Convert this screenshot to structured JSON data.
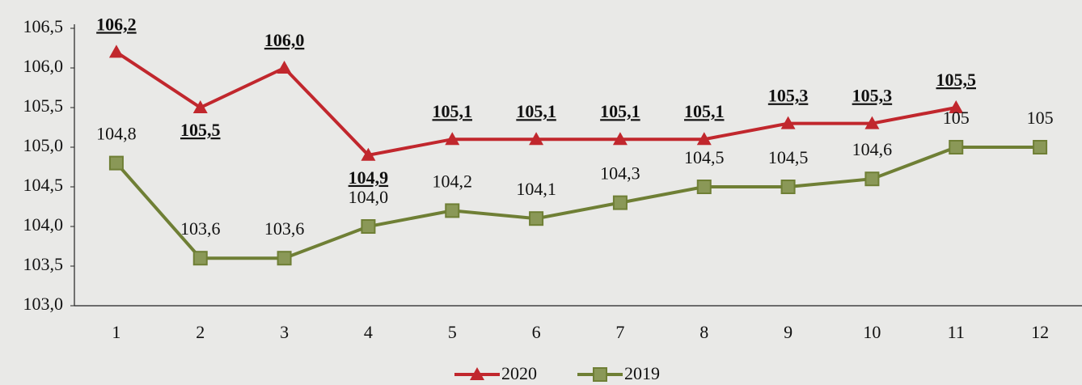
{
  "chart_data": {
    "type": "line",
    "categories": [
      "1",
      "2",
      "3",
      "4",
      "5",
      "6",
      "7",
      "8",
      "9",
      "10",
      "11",
      "12"
    ],
    "series": [
      {
        "name": "2020",
        "color": "#c1272d",
        "marker": "triangle",
        "values": [
          106.2,
          105.5,
          106.0,
          104.9,
          105.1,
          105.1,
          105.1,
          105.1,
          105.3,
          105.3,
          105.5,
          null
        ],
        "value_labels": [
          "106,2",
          "105,5",
          "106,0",
          "104,9",
          "105,1",
          "105,1",
          "105,1",
          "105,1",
          "105,3",
          "105,3",
          "105,5",
          null
        ]
      },
      {
        "name": "2019",
        "color": "#6f7f35",
        "marker": "square",
        "values": [
          104.8,
          103.6,
          103.6,
          104.0,
          104.2,
          104.1,
          104.3,
          104.5,
          104.5,
          104.6,
          105,
          105
        ],
        "value_labels": [
          "104,8",
          "103,6",
          "103,6",
          "104,0",
          "104,2",
          "104,1",
          "104,3",
          "104,5",
          "104,5",
          "104,6",
          "105",
          "105"
        ]
      }
    ],
    "ylim": [
      103.0,
      106.5
    ],
    "yticks": [
      {
        "value": 103.0,
        "label": "103,0"
      },
      {
        "value": 103.5,
        "label": "103,5"
      },
      {
        "value": 104.0,
        "label": "104,0"
      },
      {
        "value": 104.5,
        "label": "104,5"
      },
      {
        "value": 105.0,
        "label": "105,0"
      },
      {
        "value": 105.5,
        "label": "105,5"
      },
      {
        "value": 106.0,
        "label": "106,0"
      },
      {
        "value": 106.5,
        "label": "106,5"
      }
    ],
    "grid": false,
    "legend": "bottom"
  }
}
